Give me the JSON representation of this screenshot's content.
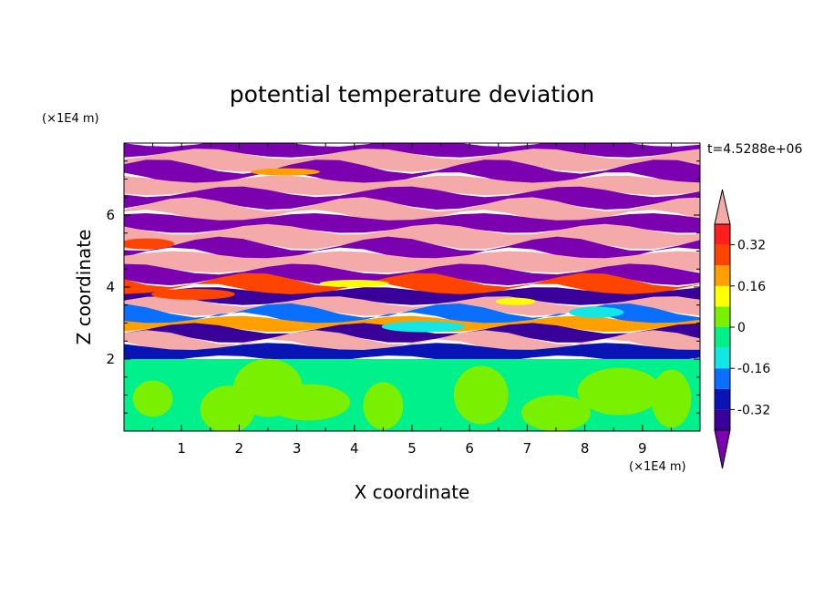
{
  "chart_data": {
    "type": "heatmap",
    "title": "potential temperature deviation",
    "xlabel": "X coordinate",
    "ylabel": "Z coordinate",
    "x_unit_label": "(×1E4 m)",
    "y_unit_label": "(×1E4 m)",
    "time_label": "t=4.5288e+06",
    "xlim": [
      0,
      10
    ],
    "ylim": [
      0,
      8
    ],
    "x_ticks": [
      "1",
      "2",
      "3",
      "4",
      "5",
      "6",
      "7",
      "8",
      "9"
    ],
    "y_ticks": [
      "2",
      "4",
      "6"
    ],
    "colorbar": {
      "levels": [
        -0.4,
        -0.32,
        -0.24,
        -0.16,
        -0.08,
        0,
        0.08,
        0.16,
        0.24,
        0.32,
        0.4
      ],
      "colors": [
        "#7a00b0",
        "#3a009a",
        "#0a14b4",
        "#0a6eff",
        "#14e6e6",
        "#00f08c",
        "#78f000",
        "#ffff00",
        "#ffa000",
        "#ff4400",
        "#ff1e1e",
        "#f5aaaa"
      ],
      "labels": [
        "0.32",
        "0.16",
        "0",
        "-0.16",
        "-0.32"
      ],
      "label_values": [
        0.32,
        0.16,
        0,
        -0.16,
        -0.32
      ],
      "extend": "both"
    },
    "bands": [
      {
        "z_min": 7.7,
        "z_max": 8.0,
        "value": -0.5
      },
      {
        "z_min": 7.35,
        "z_max": 7.7,
        "value": 0.5
      },
      {
        "z_min": 7.0,
        "z_max": 7.35,
        "value": -0.5
      },
      {
        "z_min": 6.65,
        "z_max": 7.0,
        "value": 0.5
      },
      {
        "z_min": 6.3,
        "z_max": 6.65,
        "value": -0.5
      },
      {
        "z_min": 5.95,
        "z_max": 6.3,
        "value": 0.5
      },
      {
        "z_min": 5.6,
        "z_max": 5.95,
        "value": -0.5
      },
      {
        "z_min": 5.2,
        "z_max": 5.6,
        "value": 0.5
      },
      {
        "z_min": 4.9,
        "z_max": 5.2,
        "value": -0.5
      },
      {
        "z_min": 4.5,
        "z_max": 4.9,
        "value": 0.5
      },
      {
        "z_min": 4.2,
        "z_max": 4.5,
        "value": -0.5
      },
      {
        "z_min": 3.9,
        "z_max": 4.2,
        "value": 0.3
      },
      {
        "z_min": 3.6,
        "z_max": 3.9,
        "value": -0.35
      },
      {
        "z_min": 3.35,
        "z_max": 3.6,
        "value": 0.5
      },
      {
        "z_min": 3.1,
        "z_max": 3.35,
        "value": -0.2
      },
      {
        "z_min": 2.85,
        "z_max": 3.1,
        "value": 0.2
      },
      {
        "z_min": 2.6,
        "z_max": 2.85,
        "value": -0.4
      },
      {
        "z_min": 2.35,
        "z_max": 2.6,
        "value": 0.4
      },
      {
        "z_min": 2.0,
        "z_max": 2.35,
        "value": -0.3
      },
      {
        "z_min": 0.0,
        "z_max": 2.0,
        "value": -0.02
      }
    ],
    "blobs": [
      {
        "x": 0.5,
        "z": 0.9,
        "value": 0.05
      },
      {
        "x": 1.8,
        "z": 0.6,
        "value": 0.05
      },
      {
        "x": 2.5,
        "z": 1.2,
        "value": 0.05
      },
      {
        "x": 3.2,
        "z": 0.8,
        "value": 0.05
      },
      {
        "x": 4.5,
        "z": 0.7,
        "value": 0.05
      },
      {
        "x": 6.2,
        "z": 1.0,
        "value": 0.05
      },
      {
        "x": 7.5,
        "z": 0.5,
        "value": 0.05
      },
      {
        "x": 8.6,
        "z": 1.1,
        "value": 0.05
      },
      {
        "x": 9.5,
        "z": 0.9,
        "value": 0.05
      },
      {
        "x": 0.4,
        "z": 5.2,
        "value": 0.3
      },
      {
        "x": 4.0,
        "z": 4.1,
        "value": 0.1
      },
      {
        "x": 5.2,
        "z": 2.9,
        "value": -0.15
      },
      {
        "x": 6.8,
        "z": 3.6,
        "value": 0.1
      },
      {
        "x": 8.2,
        "z": 3.3,
        "value": -0.15
      },
      {
        "x": 2.8,
        "z": 7.2,
        "value": 0.2
      },
      {
        "x": 1.2,
        "z": 3.8,
        "value": 0.3
      }
    ]
  }
}
